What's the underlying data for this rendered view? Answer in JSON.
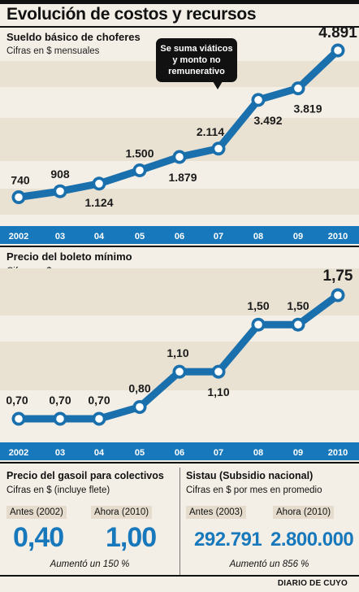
{
  "title": "Evolución de costos y recursos",
  "chart_data": [
    {
      "type": "line",
      "title": "Sueldo básico de choferes",
      "subtitle": "Cifras en $ mensuales",
      "categories": [
        "2002",
        "03",
        "04",
        "05",
        "06",
        "07",
        "08",
        "09",
        "2010"
      ],
      "values": [
        740,
        908,
        1124,
        1500,
        1879,
        2114,
        3492,
        3819,
        4891
      ],
      "value_labels": [
        "740",
        "908",
        "1.124",
        "1.500",
        "1.879",
        "2.114",
        "3.492",
        "3.819",
        "4.891"
      ],
      "annotation": "Se suma viáticos y monto no remunerativo",
      "line_color": "#1a6fad",
      "axis_bar_color": "#1778bb"
    },
    {
      "type": "line",
      "title": "Precio del boleto mínimo",
      "subtitle": "Cifras en $",
      "categories": [
        "2002",
        "03",
        "04",
        "05",
        "06",
        "07",
        "08",
        "09",
        "2010"
      ],
      "values": [
        0.7,
        0.7,
        0.7,
        0.8,
        1.1,
        1.1,
        1.5,
        1.5,
        1.75
      ],
      "value_labels": [
        "0,70",
        "0,70",
        "0,70",
        "0,80",
        "1,10",
        "1,10",
        "1,50",
        "1,50",
        "1,75"
      ],
      "line_color": "#1a6fad",
      "axis_bar_color": "#1778bb"
    }
  ],
  "gasoil": {
    "title": "Precio del gasoil para colectivos",
    "subtitle": "Cifras en $ (incluye flete)",
    "before_label": "Antes (2002)",
    "after_label": "Ahora (2010)",
    "before_value": "0,40",
    "after_value": "1,00",
    "note": "Aumentó un 150 %"
  },
  "sistau": {
    "title": "Sistau (Subsidio nacional)",
    "subtitle": "Cifras en $ por mes en promedio",
    "before_label": "Antes (2003)",
    "after_label": "Ahora (2010)",
    "before_value": "292.791",
    "after_value": "2.800.000",
    "note": "Aumentó un 856 %"
  },
  "source": "DIARIO DE CUYO"
}
